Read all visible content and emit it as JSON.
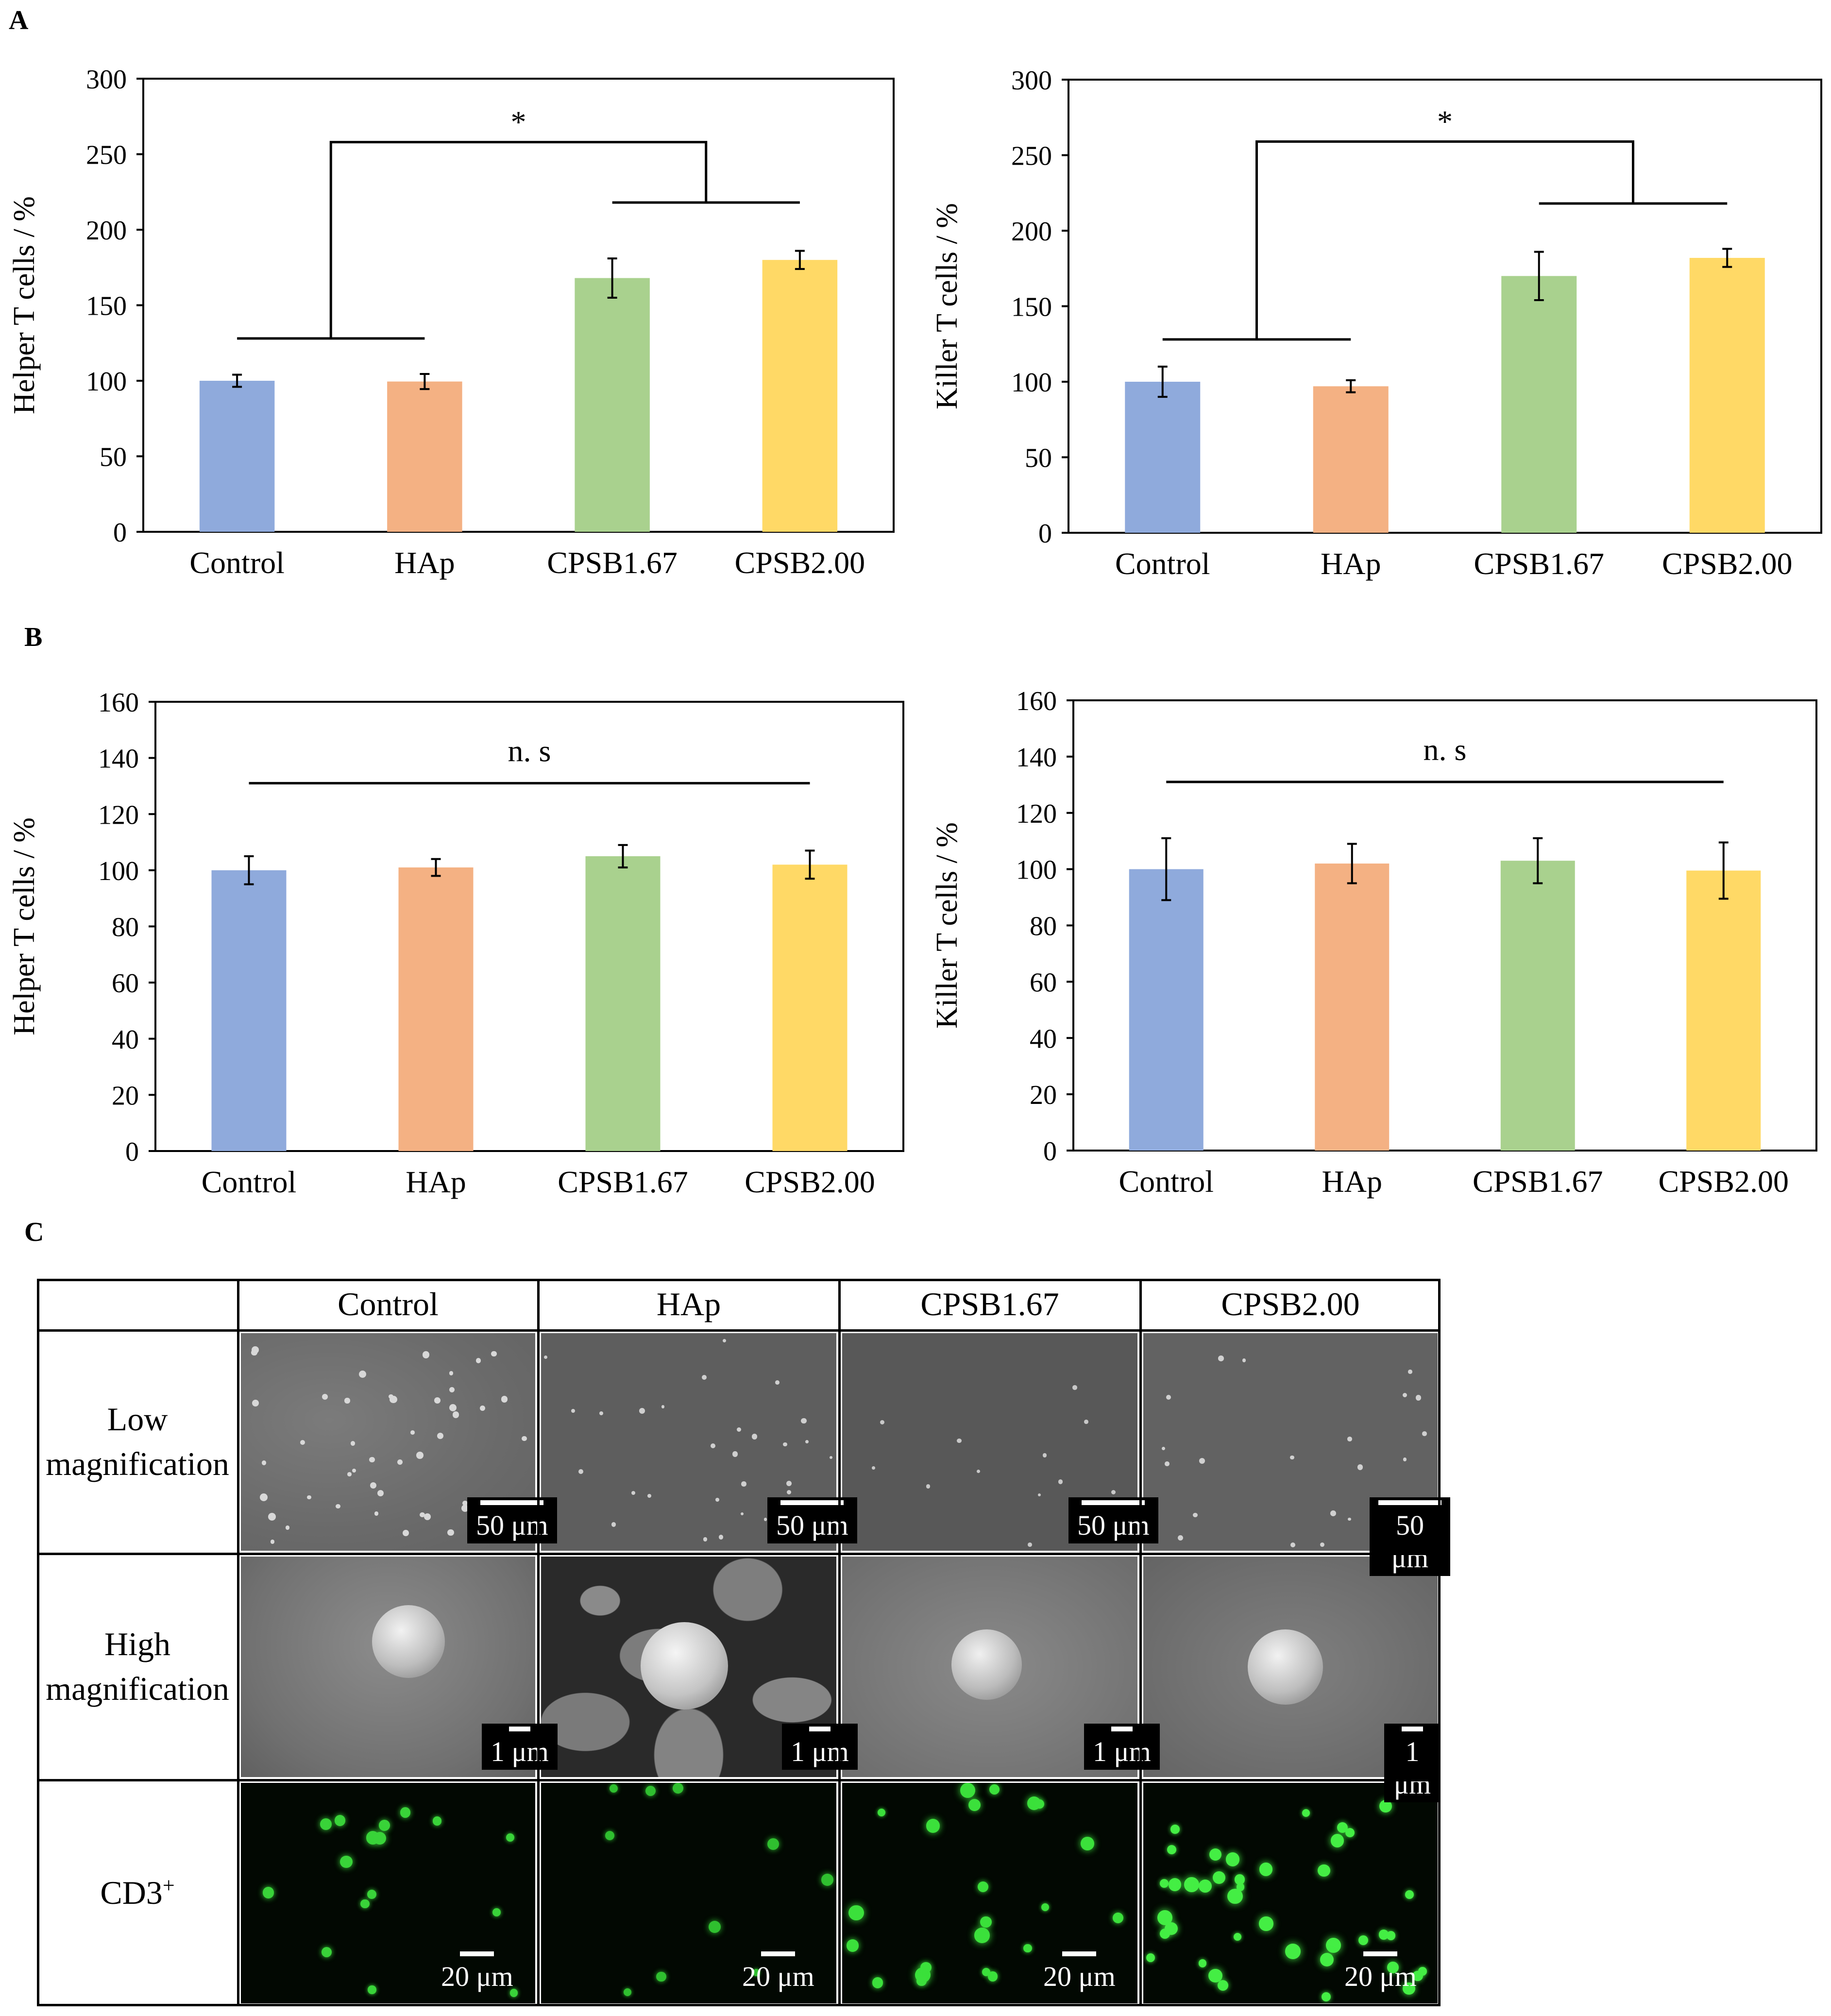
{
  "panel_labels": {
    "a": "A",
    "b": "B",
    "c": "C"
  },
  "colors": {
    "control": "#8faadc",
    "hap": "#f4b183",
    "cpsb167": "#a9d18e",
    "cpsb200": "#ffd966"
  },
  "chart_data": [
    {
      "id": "A-helper",
      "type": "bar",
      "categories": [
        "Control",
        "HAp",
        "CPSB1.67",
        "CPSB2.00"
      ],
      "values": [
        100,
        99.5,
        168,
        180
      ],
      "errors": [
        4,
        5,
        13,
        6
      ],
      "ylabel": "Helper T cells / %",
      "ylim": [
        0,
        300
      ],
      "yticks": [
        0,
        50,
        100,
        150,
        200,
        250,
        300
      ],
      "annotation": "*",
      "bracket": {
        "left_groups": [
          0,
          1
        ],
        "right_groups": [
          2,
          3
        ],
        "left_level": 128,
        "right_level": 218,
        "top_level": 258
      }
    },
    {
      "id": "A-killer",
      "type": "bar",
      "categories": [
        "Control",
        "HAp",
        "CPSB1.67",
        "CPSB2.00"
      ],
      "values": [
        100,
        97,
        170,
        182
      ],
      "errors": [
        10,
        4,
        16,
        6
      ],
      "ylabel": "Killer T cells / %",
      "ylim": [
        0,
        300
      ],
      "yticks": [
        0,
        50,
        100,
        150,
        200,
        250,
        300
      ],
      "annotation": "*",
      "bracket": {
        "left_groups": [
          0,
          1
        ],
        "right_groups": [
          2,
          3
        ],
        "left_level": 128,
        "right_level": 218,
        "top_level": 259
      }
    },
    {
      "id": "B-helper",
      "type": "bar",
      "categories": [
        "Control",
        "HAp",
        "CPSB1.67",
        "CPSB2.00"
      ],
      "values": [
        100,
        101,
        105,
        102
      ],
      "errors": [
        5,
        3,
        4,
        5
      ],
      "ylabel": "Helper T cells / %",
      "ylim": [
        0,
        160
      ],
      "yticks": [
        0,
        20,
        40,
        60,
        80,
        100,
        120,
        140,
        160
      ],
      "annotation": "n. s",
      "line_level": 131
    },
    {
      "id": "B-killer",
      "type": "bar",
      "categories": [
        "Control",
        "HAp",
        "CPSB1.67",
        "CPSB2.00"
      ],
      "values": [
        100,
        102,
        103,
        99.5
      ],
      "errors": [
        11,
        7,
        8,
        10
      ],
      "ylabel": "Killer T cells / %",
      "ylim": [
        0,
        160
      ],
      "yticks": [
        0,
        20,
        40,
        60,
        80,
        100,
        120,
        140,
        160
      ],
      "annotation": "n. s",
      "line_level": 131
    }
  ],
  "grid": {
    "columns": [
      "Control",
      "HAp",
      "CPSB1.67",
      "CPSB2.00"
    ],
    "rows": [
      {
        "label_line1": "Low",
        "label_line2": "magnification",
        "scale": "50 μm"
      },
      {
        "label_line1": "High",
        "label_line2": "magnification",
        "scale": "1 μm"
      },
      {
        "label_line1": "CD3",
        "label_sup": "+",
        "scale": "20 μm"
      }
    ]
  }
}
